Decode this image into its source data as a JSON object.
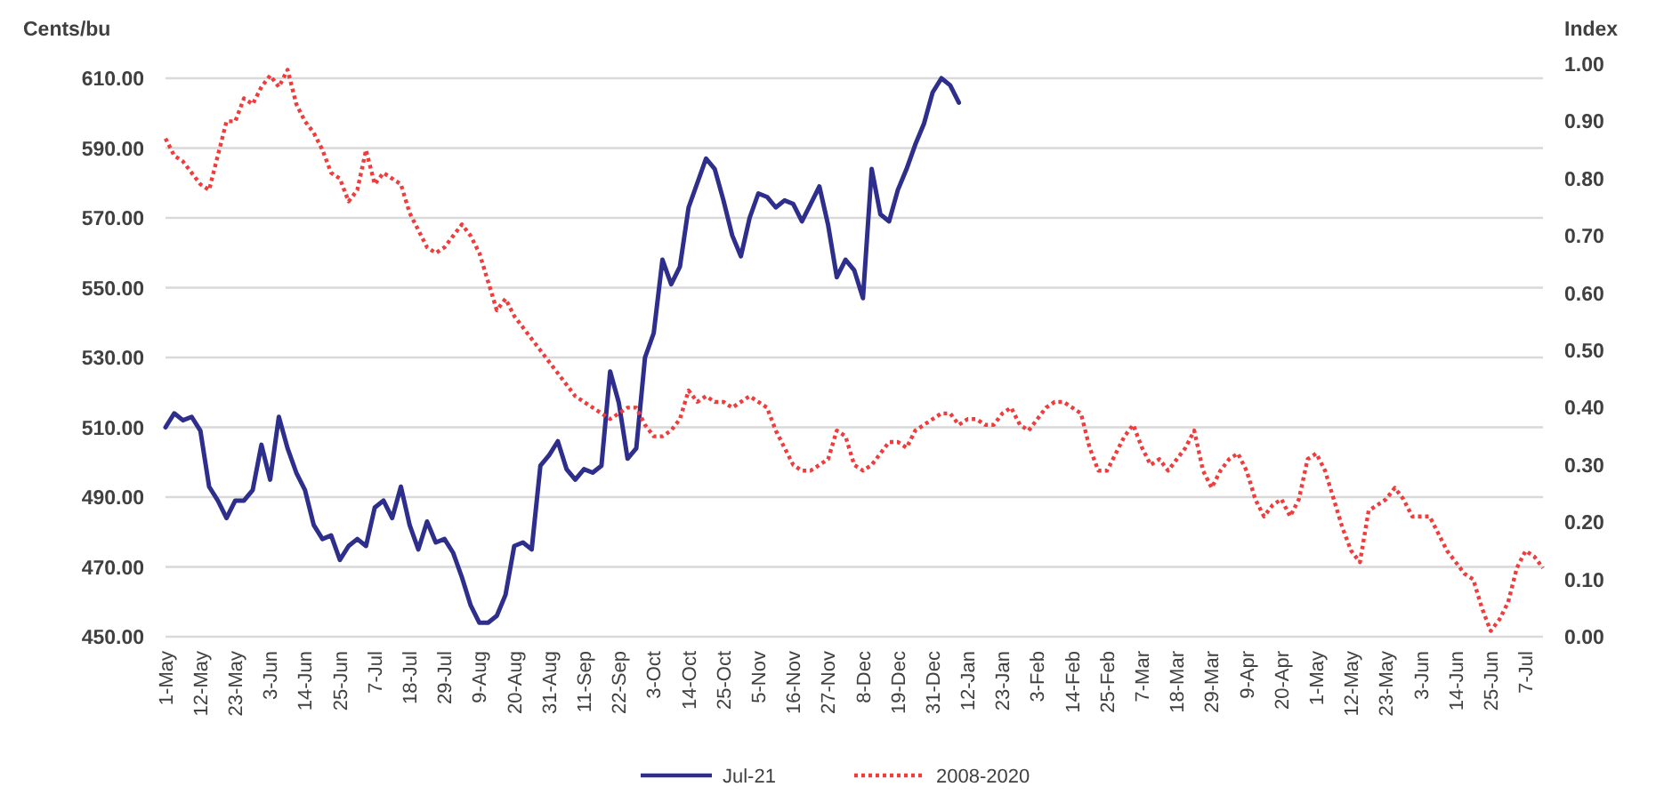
{
  "chart_data": {
    "type": "line",
    "ylabel": "Cents/bu",
    "y2label": "Index",
    "categories": [
      "1-May",
      null,
      null,
      null,
      "12-May",
      null,
      null,
      null,
      "23-May",
      null,
      null,
      null,
      "3-Jun",
      null,
      null,
      null,
      "14-Jun",
      null,
      null,
      null,
      "25-Jun",
      null,
      null,
      null,
      "7-Jul",
      null,
      null,
      null,
      "18-Jul",
      null,
      null,
      null,
      "29-Jul",
      null,
      null,
      null,
      "9-Aug",
      null,
      null,
      null,
      "20-Aug",
      null,
      null,
      null,
      "31-Aug",
      null,
      null,
      null,
      "11-Sep",
      null,
      null,
      null,
      "22-Sep",
      null,
      null,
      null,
      "3-Oct",
      null,
      null,
      null,
      "14-Oct",
      null,
      null,
      null,
      "25-Oct",
      null,
      null,
      null,
      "5-Nov",
      null,
      null,
      null,
      "16-Nov",
      null,
      null,
      null,
      "27-Nov",
      null,
      null,
      null,
      "8-Dec",
      null,
      null,
      null,
      "19-Dec",
      null,
      null,
      null,
      "31-Dec",
      null,
      null,
      null,
      "12-Jan",
      null,
      null,
      null,
      "23-Jan",
      null,
      null,
      null,
      "3-Feb",
      null,
      null,
      null,
      "14-Feb",
      null,
      null,
      null,
      "25-Feb",
      null,
      null,
      null,
      "7-Mar",
      null,
      null,
      null,
      "18-Mar",
      null,
      null,
      null,
      "29-Mar",
      null,
      null,
      null,
      "9-Apr",
      null,
      null,
      null,
      "20-Apr",
      null,
      null,
      null,
      "1-May",
      null,
      null,
      null,
      "12-May",
      null,
      null,
      null,
      "23-May",
      null,
      null,
      null,
      "3-Jun",
      null,
      null,
      null,
      "14-Jun",
      null,
      null,
      null,
      "25-Jun",
      null,
      null,
      null,
      "7-Jul",
      null,
      null
    ],
    "series": [
      {
        "name": "Jul-21",
        "color": "#2e2e8c",
        "line_style": "solid",
        "values": [
          510,
          514,
          512,
          513,
          509,
          493,
          489,
          484,
          489,
          489,
          492,
          505,
          495,
          513,
          504,
          497,
          492,
          482,
          478,
          479,
          472,
          476,
          478,
          476,
          487,
          489,
          484,
          493,
          482,
          475,
          483,
          477,
          478,
          474,
          467,
          459,
          454,
          454,
          456,
          462,
          476,
          477,
          475,
          499,
          502,
          506,
          498,
          495,
          498,
          497,
          499,
          526,
          517,
          501,
          504,
          530,
          537,
          558,
          551,
          556,
          573,
          580,
          587,
          584,
          575,
          565,
          559,
          570,
          577,
          576,
          573,
          575,
          574,
          569,
          574,
          579,
          568,
          553,
          558,
          555,
          547,
          584,
          571,
          569,
          578,
          584,
          591,
          597,
          606,
          610,
          608,
          603,
          null,
          null,
          null,
          null,
          null,
          null,
          null,
          null,
          null,
          null,
          null,
          null,
          null,
          null,
          null,
          null,
          null,
          null,
          null,
          null,
          null,
          null,
          null,
          null,
          null,
          null,
          null,
          null,
          null,
          null,
          null,
          null,
          null,
          null,
          null,
          null,
          null,
          null,
          null,
          null,
          null,
          null,
          null,
          null,
          null,
          null,
          null,
          null,
          null,
          null,
          null,
          null,
          null,
          null,
          null,
          null,
          null,
          null,
          null,
          null,
          null,
          null,
          null,
          null,
          null,
          null,
          null
        ]
      },
      {
        "name": "2008-2020",
        "color": "#f03c3c",
        "line_style": "dotted",
        "axis": "y2",
        "values": [
          0.87,
          0.84,
          0.83,
          0.81,
          0.79,
          0.78,
          0.84,
          0.9,
          0.9,
          0.94,
          0.93,
          0.96,
          0.98,
          0.96,
          0.99,
          0.93,
          0.9,
          0.88,
          0.85,
          0.81,
          0.8,
          0.76,
          0.78,
          0.85,
          0.79,
          0.81,
          0.8,
          0.79,
          0.74,
          0.71,
          0.68,
          0.67,
          0.68,
          0.7,
          0.72,
          0.7,
          0.67,
          0.62,
          0.57,
          0.59,
          0.56,
          0.54,
          0.52,
          0.5,
          0.48,
          0.46,
          0.44,
          0.42,
          0.41,
          0.4,
          0.39,
          0.38,
          0.39,
          0.4,
          0.4,
          0.37,
          0.35,
          0.35,
          0.36,
          0.38,
          0.43,
          0.41,
          0.42,
          0.41,
          0.41,
          0.4,
          0.41,
          0.42,
          0.41,
          0.4,
          0.36,
          0.33,
          0.3,
          0.29,
          0.29,
          0.3,
          0.31,
          0.36,
          0.35,
          0.3,
          0.29,
          0.3,
          0.32,
          0.34,
          0.34,
          0.33,
          0.36,
          0.37,
          0.38,
          0.39,
          0.39,
          0.37,
          0.38,
          0.38,
          0.37,
          0.37,
          0.39,
          0.4,
          0.37,
          0.36,
          0.38,
          0.4,
          0.41,
          0.41,
          0.4,
          0.39,
          0.33,
          0.29,
          0.29,
          0.32,
          0.35,
          0.37,
          0.33,
          0.3,
          0.31,
          0.29,
          0.31,
          0.33,
          0.36,
          0.29,
          0.26,
          0.29,
          0.31,
          0.32,
          0.29,
          0.24,
          0.21,
          0.23,
          0.24,
          0.21,
          0.24,
          0.31,
          0.32,
          0.29,
          0.24,
          0.19,
          0.15,
          0.13,
          0.22,
          0.23,
          0.24,
          0.26,
          0.24,
          0.21,
          0.21,
          0.21,
          0.18,
          0.15,
          0.13,
          0.11,
          0.1,
          0.05,
          0.01,
          0.03,
          0.06,
          0.12,
          0.15,
          0.14,
          0.12
        ]
      }
    ],
    "ylim": [
      450,
      610
    ],
    "yticks": [
      {
        "value": 450,
        "label": "450.00"
      },
      {
        "value": 470,
        "label": "470.00"
      },
      {
        "value": 490,
        "label": "490.00"
      },
      {
        "value": 510,
        "label": "510.00"
      },
      {
        "value": 530,
        "label": "530.00"
      },
      {
        "value": 550,
        "label": "550.00"
      },
      {
        "value": 570,
        "label": "570.00"
      },
      {
        "value": 590,
        "label": "590.00"
      },
      {
        "value": 610,
        "label": "610.00"
      }
    ],
    "y2lim": [
      0,
      1
    ],
    "y2ticks": [
      {
        "value": 0,
        "label": "0.00"
      },
      {
        "value": 0.1,
        "label": "0.10"
      },
      {
        "value": 0.2,
        "label": "0.20"
      },
      {
        "value": 0.3,
        "label": "0.30"
      },
      {
        "value": 0.4,
        "label": "0.40"
      },
      {
        "value": 0.5,
        "label": "0.50"
      },
      {
        "value": 0.6,
        "label": "0.60"
      },
      {
        "value": 0.7,
        "label": "0.70"
      },
      {
        "value": 0.8,
        "label": "0.80"
      },
      {
        "value": 0.9,
        "label": "0.90"
      },
      {
        "value": 1,
        "label": "1.00"
      }
    ],
    "grid": "y",
    "legend": "bottom",
    "marker": "none"
  }
}
